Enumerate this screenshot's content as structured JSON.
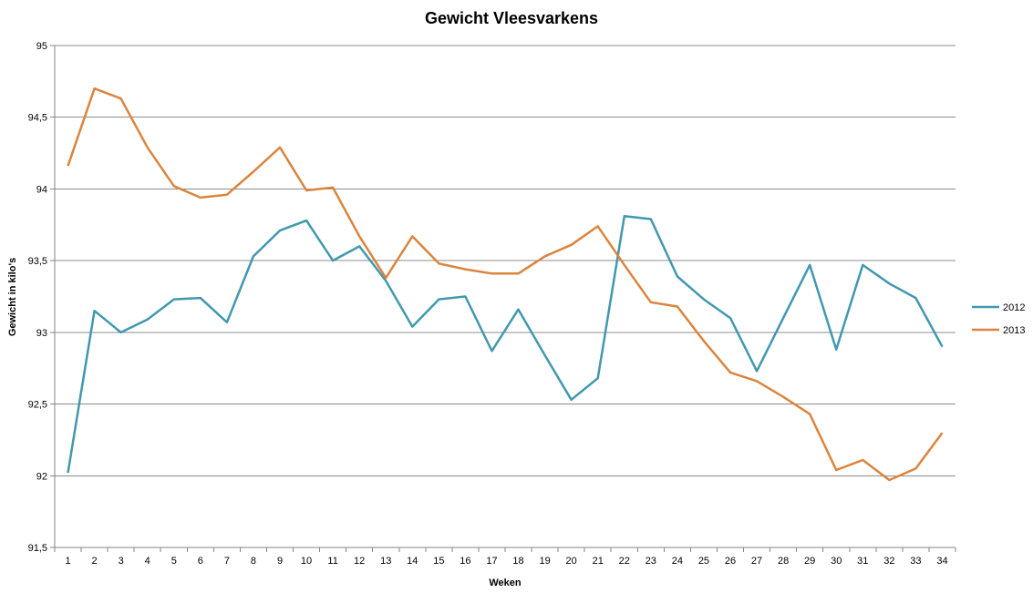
{
  "chart_data": {
    "type": "line",
    "title": "Gewicht Vleesvarkens",
    "xlabel": "Weken",
    "ylabel": "Gewicht in kilo's",
    "ylim": [
      91.5,
      95
    ],
    "yticks": [
      "91,5",
      "92",
      "92,5",
      "93",
      "93,5",
      "94",
      "94,5",
      "95"
    ],
    "ytick_values": [
      91.5,
      92,
      92.5,
      93,
      93.5,
      94,
      94.5,
      95
    ],
    "grid": true,
    "legend_position": "right",
    "categories": [
      "1",
      "2",
      "3",
      "4",
      "5",
      "6",
      "7",
      "8",
      "9",
      "10",
      "11",
      "12",
      "13",
      "14",
      "15",
      "16",
      "17",
      "18",
      "19",
      "20",
      "21",
      "22",
      "23",
      "24",
      "25",
      "26",
      "27",
      "28",
      "29",
      "30",
      "31",
      "32",
      "33",
      "34"
    ],
    "series": [
      {
        "name": "2012",
        "color": "#4198AF",
        "values": [
          92.02,
          93.15,
          93.0,
          93.09,
          93.23,
          93.24,
          93.07,
          93.53,
          93.71,
          93.78,
          93.5,
          93.6,
          93.36,
          93.04,
          93.23,
          93.25,
          92.87,
          93.16,
          92.84,
          92.53,
          92.68,
          93.81,
          93.79,
          93.39,
          93.23,
          93.1,
          92.73,
          93.1,
          93.47,
          92.88,
          93.47,
          93.34,
          93.24,
          92.9
        ]
      },
      {
        "name": "2013",
        "color": "#DB843D",
        "values": [
          94.16,
          94.7,
          94.63,
          94.29,
          94.02,
          93.94,
          93.96,
          94.12,
          94.29,
          93.99,
          94.01,
          93.67,
          93.38,
          93.67,
          93.48,
          93.44,
          93.41,
          93.41,
          93.53,
          93.61,
          93.74,
          93.47,
          93.21,
          93.18,
          92.94,
          92.72,
          92.66,
          92.55,
          92.43,
          92.04,
          92.11,
          91.97,
          92.05,
          92.3
        ]
      }
    ]
  }
}
